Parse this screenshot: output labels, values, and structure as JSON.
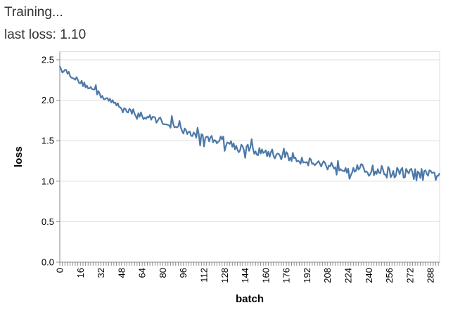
{
  "status": {
    "training_text": "Training...",
    "last_loss_label": "last loss:",
    "last_loss_value": "1.10"
  },
  "chart_data": {
    "type": "line",
    "xlabel": "batch",
    "ylabel": "loss",
    "xlim": [
      0,
      295
    ],
    "ylim": [
      0,
      2.6
    ],
    "y_ticks": [
      "0.0",
      "0.5",
      "1.0",
      "1.5",
      "2.0",
      "2.5"
    ],
    "x_tick_labels": [
      "0",
      "16",
      "32",
      "48",
      "64",
      "80",
      "96",
      "112",
      "128",
      "144",
      "160",
      "176",
      "192",
      "208",
      "224",
      "240",
      "256",
      "272",
      "288"
    ],
    "grid": true,
    "line_color": "#4c78a8",
    "series": [
      {
        "x": [
          0,
          8,
          16,
          24,
          32,
          40,
          48,
          56,
          64,
          72,
          80,
          88,
          96,
          104,
          112,
          120,
          128,
          136,
          144,
          152,
          160,
          168,
          176,
          184,
          192,
          200,
          208,
          216,
          224,
          232,
          240,
          248,
          256,
          264,
          272,
          280,
          288,
          295
        ],
        "y": [
          2.42,
          2.32,
          2.22,
          2.15,
          2.06,
          1.98,
          1.92,
          1.86,
          1.79,
          1.78,
          1.74,
          1.68,
          1.62,
          1.58,
          1.53,
          1.52,
          1.5,
          1.44,
          1.41,
          1.37,
          1.35,
          1.33,
          1.31,
          1.28,
          1.26,
          1.22,
          1.2,
          1.19,
          1.17,
          1.15,
          1.13,
          1.13,
          1.11,
          1.1,
          1.09,
          1.08,
          1.06,
          1.1
        ]
      }
    ]
  }
}
